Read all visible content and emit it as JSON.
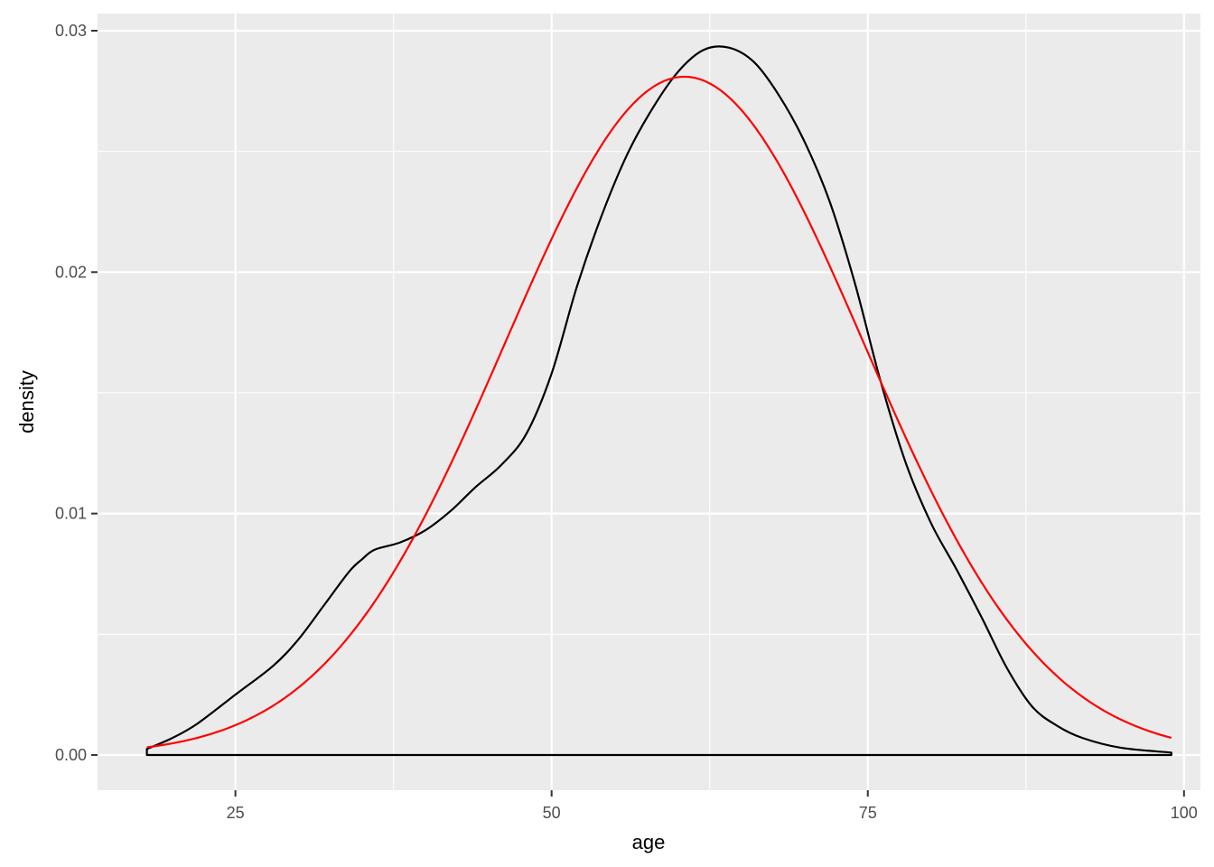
{
  "chart_data": {
    "type": "line",
    "title": "",
    "xlabel": "age",
    "ylabel": "density",
    "xlim": [
      14.1,
      101.3
    ],
    "ylim": [
      -0.00146,
      0.03071
    ],
    "x_ticks": [
      25,
      50,
      75,
      100
    ],
    "x_tick_labels": [
      "25",
      "50",
      "75",
      "100"
    ],
    "y_ticks": [
      0.0,
      0.01,
      0.02,
      0.03
    ],
    "y_tick_labels": [
      "0.00",
      "0.01",
      "0.02",
      "0.03"
    ],
    "grid": true,
    "legend": "none",
    "series": [
      {
        "kind": "density",
        "color": "#000000",
        "x": [
          18,
          20,
          22,
          25,
          28,
          30,
          32,
          34,
          35,
          36,
          38,
          40,
          42,
          44,
          46,
          48,
          50,
          52,
          54,
          56,
          58,
          60,
          62,
          64,
          66,
          68,
          70,
          72,
          74,
          76,
          78,
          80,
          82,
          84,
          86,
          88,
          90,
          92,
          95,
          99
        ],
        "y": [
          0.00025,
          0.0007,
          0.0013,
          0.0025,
          0.0037,
          0.0048,
          0.0062,
          0.0076,
          0.0081,
          0.0085,
          0.0088,
          0.0093,
          0.0101,
          0.0111,
          0.012,
          0.0133,
          0.0158,
          0.0194,
          0.0224,
          0.0249,
          0.0268,
          0.0283,
          0.0292,
          0.0293,
          0.0287,
          0.0273,
          0.0254,
          0.0229,
          0.0195,
          0.0155,
          0.0121,
          0.0096,
          0.0077,
          0.0057,
          0.0036,
          0.002,
          0.0012,
          0.0007,
          0.0003,
          0.0001
        ]
      },
      {
        "kind": "normal",
        "color": "#ff0000",
        "mean": 60.5,
        "sd": 14.2,
        "x_range": [
          18,
          99
        ]
      }
    ]
  }
}
